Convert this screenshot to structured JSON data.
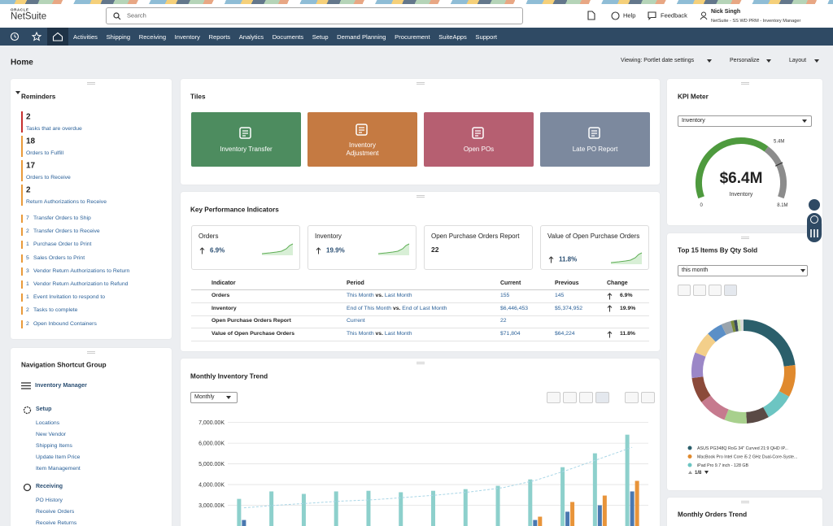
{
  "header": {
    "brand_top": "ORACLE",
    "brand": "NetSuite",
    "search_placeholder": "Search",
    "help": "Help",
    "feedback": "Feedback",
    "user_name": "Nick Singh",
    "user_role": "NetSuite - SS WD PRM - Inventory Manager"
  },
  "nav": [
    "Activities",
    "Shipping",
    "Receiving",
    "Inventory",
    "Reports",
    "Analytics",
    "Documents",
    "Setup",
    "Demand Planning",
    "Procurement",
    "SuiteApps",
    "Support"
  ],
  "page": {
    "title": "Home",
    "viewing": "Viewing: Portlet date settings",
    "personalize": "Personalize",
    "layout": "Layout"
  },
  "reminders": {
    "title": "Reminders",
    "highlighted": [
      {
        "count": 2,
        "label": "Tasks that are overdue"
      },
      {
        "count": 18,
        "label": "Orders to Fulfill"
      },
      {
        "count": 17,
        "label": "Orders to Receive"
      },
      {
        "count": 2,
        "label": "Return Authorizations to Receive"
      }
    ],
    "items": [
      {
        "count": 7,
        "label": "Transfer Orders to Ship"
      },
      {
        "count": 2,
        "label": "Transfer Orders to Receive"
      },
      {
        "count": 1,
        "label": "Purchase Order to Print"
      },
      {
        "count": 5,
        "label": "Sales Orders to Print"
      },
      {
        "count": 3,
        "label": "Vendor Return Authorizations to Return"
      },
      {
        "count": 1,
        "label": "Vendor Return Authorization to Refund"
      },
      {
        "count": 1,
        "label": "Event Invitation to respond to"
      },
      {
        "count": 2,
        "label": "Tasks to complete"
      },
      {
        "count": 2,
        "label": "Open Inbound Containers"
      }
    ]
  },
  "shortcuts": {
    "title": "Navigation Shortcut Group",
    "group": "Inventory Manager",
    "sections": [
      {
        "title": "Setup",
        "links": [
          "Locations",
          "New Vendor",
          "Shipping Items",
          "Update Item Price",
          "Item Management"
        ]
      },
      {
        "title": "Receiving",
        "links": [
          "PO History",
          "Receive Orders",
          "Receive Returns"
        ]
      }
    ]
  },
  "tiles": {
    "title": "Tiles",
    "items": [
      {
        "label": "Inventory Transfer",
        "color": "#4d8c5f"
      },
      {
        "label": "Inventory Adjustment",
        "color": "#c57a42"
      },
      {
        "label": "Open POs",
        "color": "#b65f71"
      },
      {
        "label": "Late PO Report",
        "color": "#7c899e"
      }
    ]
  },
  "kpi": {
    "title": "Key Performance Indicators",
    "cards": [
      {
        "name": "Orders",
        "change": "6.9%"
      },
      {
        "name": "Inventory",
        "change": "19.9%"
      },
      {
        "name": "Open Purchase Orders Report",
        "value": 22
      },
      {
        "name": "Value of Open Purchase Orders",
        "change": "11.8%"
      }
    ],
    "table": {
      "headers": [
        "Indicator",
        "Period",
        "Current",
        "Previous",
        "Change"
      ],
      "rows": [
        {
          "indicator": "Orders",
          "period": [
            "This Month",
            "vs.",
            "Last Month"
          ],
          "current": "155",
          "previous": "145",
          "change": "6.9%"
        },
        {
          "indicator": "Inventory",
          "period": [
            "End of This Month",
            "vs.",
            "End of Last Month"
          ],
          "current": "$6,446,453",
          "previous": "$5,374,952",
          "change": "19.9%"
        },
        {
          "indicator": "Open Purchase Orders Report",
          "period": [
            "Current"
          ],
          "current": "22"
        },
        {
          "indicator": "Value of Open Purchase Orders",
          "period": [
            "This Month",
            "vs.",
            "Last Month"
          ],
          "current": "$71,804",
          "previous": "$64,224",
          "change": "11.8%"
        }
      ]
    }
  },
  "trend": {
    "title": "Monthly Inventory Trend",
    "select": "Monthly"
  },
  "kpi_meter": {
    "title": "KPI Meter",
    "select": "Inventory",
    "value": {
      "value": 6.4,
      "label": "$6.4M"
    },
    "label": "Inventory",
    "min": 0,
    "threshold": {
      "value": 5.4,
      "label": "5.4M"
    },
    "max": {
      "value": 8.1,
      "label": "8.1M"
    }
  },
  "top_items": {
    "title": "Top 15 Items By Qty Sold",
    "select": "this month",
    "page_indicator": "1/8"
  },
  "orders_trend": {
    "title": "Monthly Orders Trend"
  },
  "chart_data": [
    {
      "type": "bar",
      "categories": [
        null,
        null,
        null,
        null,
        null,
        null,
        null,
        null,
        null,
        null,
        null,
        null,
        null
      ],
      "series": [
        {
          "color": "#8dd0cc",
          "values": [
            3310,
            3670,
            3550,
            3670,
            3700,
            3630,
            3700,
            3780,
            3940,
            4250,
            4840,
            5510,
            6410
          ]
        },
        {
          "color": "#4a78b0",
          "values": [
            2290,
            null,
            null,
            null,
            null,
            null,
            null,
            null,
            null,
            2290,
            2690,
            3000,
            3670
          ]
        },
        {
          "color": "#e8943a",
          "values": [
            null,
            null,
            null,
            null,
            null,
            null,
            null,
            null,
            null,
            2450,
            3160,
            3470,
            4180
          ]
        },
        {
          "type": "line",
          "color": "#a9d6e6",
          "values": [
            2880,
            3000,
            3100,
            3200,
            3270,
            3380,
            3500,
            3650,
            3850,
            4200,
            4700,
            5250,
            5800
          ]
        }
      ],
      "ylim": [
        2000,
        7300
      ],
      "yticks": [
        {
          "value": 3000,
          "label": "3,000.00K"
        },
        {
          "value": 4000,
          "label": "4,000.00K"
        },
        {
          "value": 5000,
          "label": "5,000.00K"
        },
        {
          "value": 6000,
          "label": "6,000.00K"
        },
        {
          "value": 7000,
          "label": "7,000.00K"
        }
      ],
      "grid": true
    },
    {
      "type": "pie",
      "donut": true,
      "categories": [
        "ASUS PG348Q RoG 34\" Curved 21:9 QHD IP...",
        "MacBook Pro Intel Core i5 2 GHz Dual-Core-Syste...",
        "iPad Pro 9.7 inch - 128 GB",
        null,
        null,
        null,
        null,
        null,
        null,
        null,
        null,
        null,
        null,
        null,
        null
      ],
      "values": [
        23,
        10,
        9,
        7,
        7,
        9,
        8,
        8,
        7,
        5,
        3,
        1,
        1,
        1,
        1
      ],
      "colors": [
        "#2b5f6b",
        "#e08a2e",
        "#6cc5c2",
        "#5a4a45",
        "#a8d08d",
        "#c67a8e",
        "#8b4a3a",
        "#9b87c7",
        "#f3cf8a",
        "#5b8fc7",
        "#9aa4ad",
        "#7a8c3a",
        "#3b4a5c",
        "#c5e0a8",
        "#d9d9d9"
      ]
    }
  ]
}
